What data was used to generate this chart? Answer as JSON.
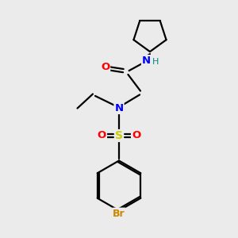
{
  "background_color": "#ebebeb",
  "bond_color": "#000000",
  "atom_colors": {
    "O": "#ff0000",
    "N": "#0000ff",
    "S": "#cccc00",
    "Br": "#cc8800",
    "H": "#008888",
    "C": "#000000"
  },
  "figsize": [
    3.0,
    3.0
  ],
  "dpi": 100
}
